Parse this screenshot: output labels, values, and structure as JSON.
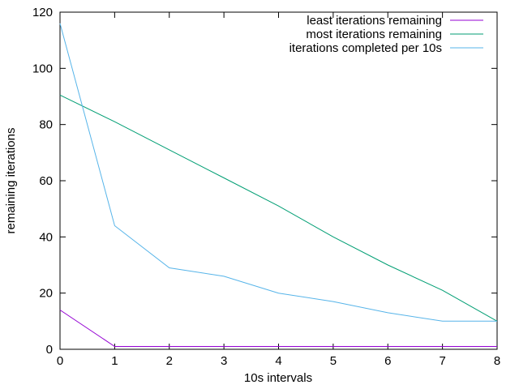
{
  "chart_data": {
    "type": "line",
    "title": "",
    "xlabel": "10s intervals",
    "ylabel": "remaining iterations",
    "xlim": [
      0,
      8
    ],
    "ylim": [
      0,
      120
    ],
    "xticks": [
      0,
      1,
      2,
      3,
      4,
      5,
      6,
      7,
      8
    ],
    "yticks": [
      0,
      20,
      40,
      60,
      80,
      100,
      120
    ],
    "grid": false,
    "legend_position": "top-right",
    "series": [
      {
        "name": "least iterations remaining",
        "color": "#9400d3",
        "x": [
          0,
          1,
          2,
          3,
          4,
          5,
          6,
          7,
          8
        ],
        "y": [
          14,
          1,
          1,
          1,
          1,
          1,
          1,
          1,
          1
        ]
      },
      {
        "name": "most iterations remaining",
        "color": "#009e73",
        "x": [
          0,
          1,
          2,
          3,
          4,
          5,
          6,
          7,
          8
        ],
        "y": [
          90.5,
          81,
          71,
          61,
          51,
          40,
          30,
          21,
          10
        ]
      },
      {
        "name": "iterations completed per 10s",
        "color": "#56b4e9",
        "x": [
          0,
          1,
          2,
          3,
          4,
          5,
          6,
          7,
          8
        ],
        "y": [
          116,
          44,
          29,
          26,
          20,
          17,
          13,
          10,
          10
        ]
      }
    ]
  }
}
